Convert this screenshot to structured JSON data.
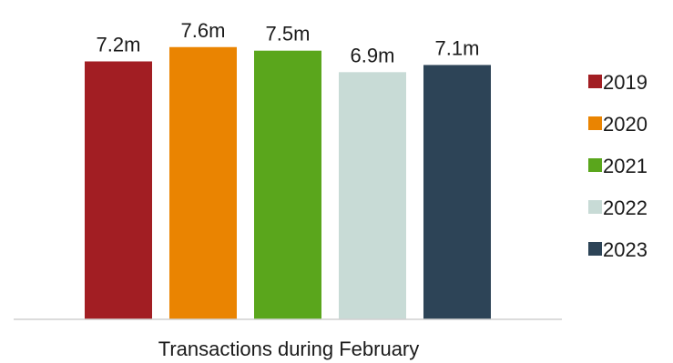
{
  "chart_data": {
    "type": "bar",
    "title": "",
    "xlabel": "Transactions during February",
    "ylabel": "",
    "ylim": [
      0,
      8
    ],
    "grid": false,
    "legend_position": "right",
    "categories": [
      "Transactions during February"
    ],
    "series": [
      {
        "name": "2019",
        "values": [
          7.2
        ],
        "label": "7.2m",
        "color": "#a21e23"
      },
      {
        "name": "2020",
        "values": [
          7.6
        ],
        "label": "7.6m",
        "color": "#ea8401"
      },
      {
        "name": "2021",
        "values": [
          7.5
        ],
        "label": "7.5m",
        "color": "#5aa61c"
      },
      {
        "name": "2022",
        "values": [
          6.9
        ],
        "label": "6.9m",
        "color": "#c8dbd6"
      },
      {
        "name": "2023",
        "values": [
          7.1
        ],
        "label": "7.1m",
        "color": "#2d4457"
      }
    ]
  }
}
